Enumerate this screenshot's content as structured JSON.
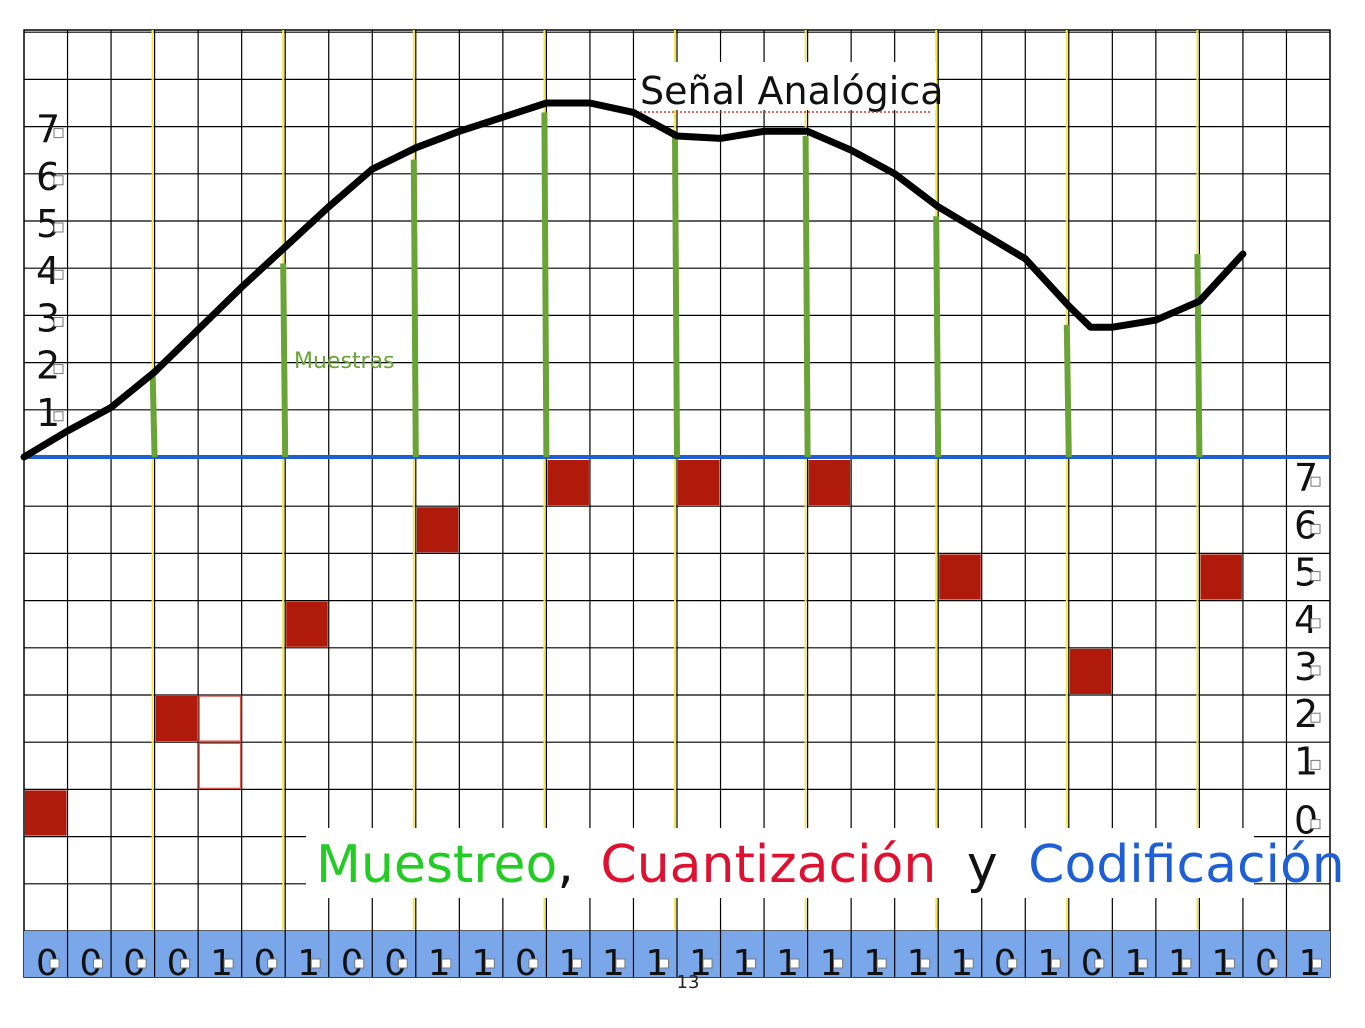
{
  "title": "Señal Analógica",
  "samples_label": "Muestras",
  "caption": {
    "word1": "Muestreo",
    "comma": ",",
    "word2": "Cuantización",
    "conj": "y",
    "word3": "Codificación"
  },
  "page_number": "13",
  "levels": [
    "0",
    "1",
    "2",
    "3",
    "4",
    "5",
    "6",
    "7"
  ],
  "signal_axis_labels": [
    "1",
    "2",
    "3",
    "4",
    "5",
    "6",
    "7"
  ],
  "bits": [
    "0",
    "0",
    "0",
    "0",
    "1",
    "0",
    "1",
    "0",
    "0",
    "1",
    "1",
    "0",
    "1",
    "1",
    "1",
    "1",
    "1",
    "1",
    "1",
    "1",
    "1",
    "1",
    "0",
    "1",
    "0",
    "1",
    "1",
    "1",
    "0",
    "1"
  ],
  "colors": {
    "grid": "#000000",
    "yellow_lines": "#f2e84a",
    "signal": "#000000",
    "samples": "#6aa336",
    "baseline": "#1f5fd6",
    "quantized": "#b01a0a",
    "bit_band": "#7aa7ea",
    "muestreo": "#22cc22",
    "cuantizacion": "#e01030",
    "codificacion": "#1f5fd6"
  },
  "chart_data": {
    "type": "line",
    "signal_curve_levels": [
      {
        "x": 0,
        "y": 0.0
      },
      {
        "x": 1,
        "y": 0.55
      },
      {
        "x": 2,
        "y": 1.05
      },
      {
        "x": 3,
        "y": 1.8
      },
      {
        "x": 4,
        "y": 2.7
      },
      {
        "x": 5,
        "y": 3.6
      },
      {
        "x": 6,
        "y": 4.45
      },
      {
        "x": 7,
        "y": 5.3
      },
      {
        "x": 8,
        "y": 6.1
      },
      {
        "x": 9,
        "y": 6.55
      },
      {
        "x": 10,
        "y": 6.9
      },
      {
        "x": 11,
        "y": 7.2
      },
      {
        "x": 12,
        "y": 7.5
      },
      {
        "x": 13,
        "y": 7.5
      },
      {
        "x": 14,
        "y": 7.3
      },
      {
        "x": 15,
        "y": 6.8
      },
      {
        "x": 16,
        "y": 6.75
      },
      {
        "x": 17,
        "y": 6.9
      },
      {
        "x": 18,
        "y": 6.9
      },
      {
        "x": 19,
        "y": 6.5
      },
      {
        "x": 20,
        "y": 6.0
      },
      {
        "x": 21,
        "y": 5.3
      },
      {
        "x": 22,
        "y": 4.75
      },
      {
        "x": 23,
        "y": 4.2
      },
      {
        "x": 24,
        "y": 3.2
      },
      {
        "x": 24.5,
        "y": 2.75
      },
      {
        "x": 25,
        "y": 2.75
      },
      {
        "x": 26,
        "y": 2.9
      },
      {
        "x": 27,
        "y": 3.3
      },
      {
        "x": 28,
        "y": 4.3
      }
    ],
    "sample_columns": [
      3,
      6,
      9,
      12,
      15,
      18,
      21,
      24,
      27
    ],
    "sample_values": [
      1.8,
      4.1,
      6.3,
      7.3,
      6.8,
      6.8,
      5.1,
      2.8,
      4.3
    ],
    "quantized_cells": [
      {
        "col": 0,
        "level": 0
      },
      {
        "col": 3,
        "level": 2
      },
      {
        "col": 6,
        "level": 4
      },
      {
        "col": 9,
        "level": 6
      },
      {
        "col": 12,
        "level": 7
      },
      {
        "col": 15,
        "level": 7
      },
      {
        "col": 18,
        "level": 7
      },
      {
        "col": 21,
        "level": 5
      },
      {
        "col": 24,
        "level": 3
      },
      {
        "col": 27,
        "level": 5
      }
    ],
    "outlined_cells": [
      {
        "col": 4,
        "level": 2
      },
      {
        "col": 4,
        "level": 1
      }
    ]
  }
}
